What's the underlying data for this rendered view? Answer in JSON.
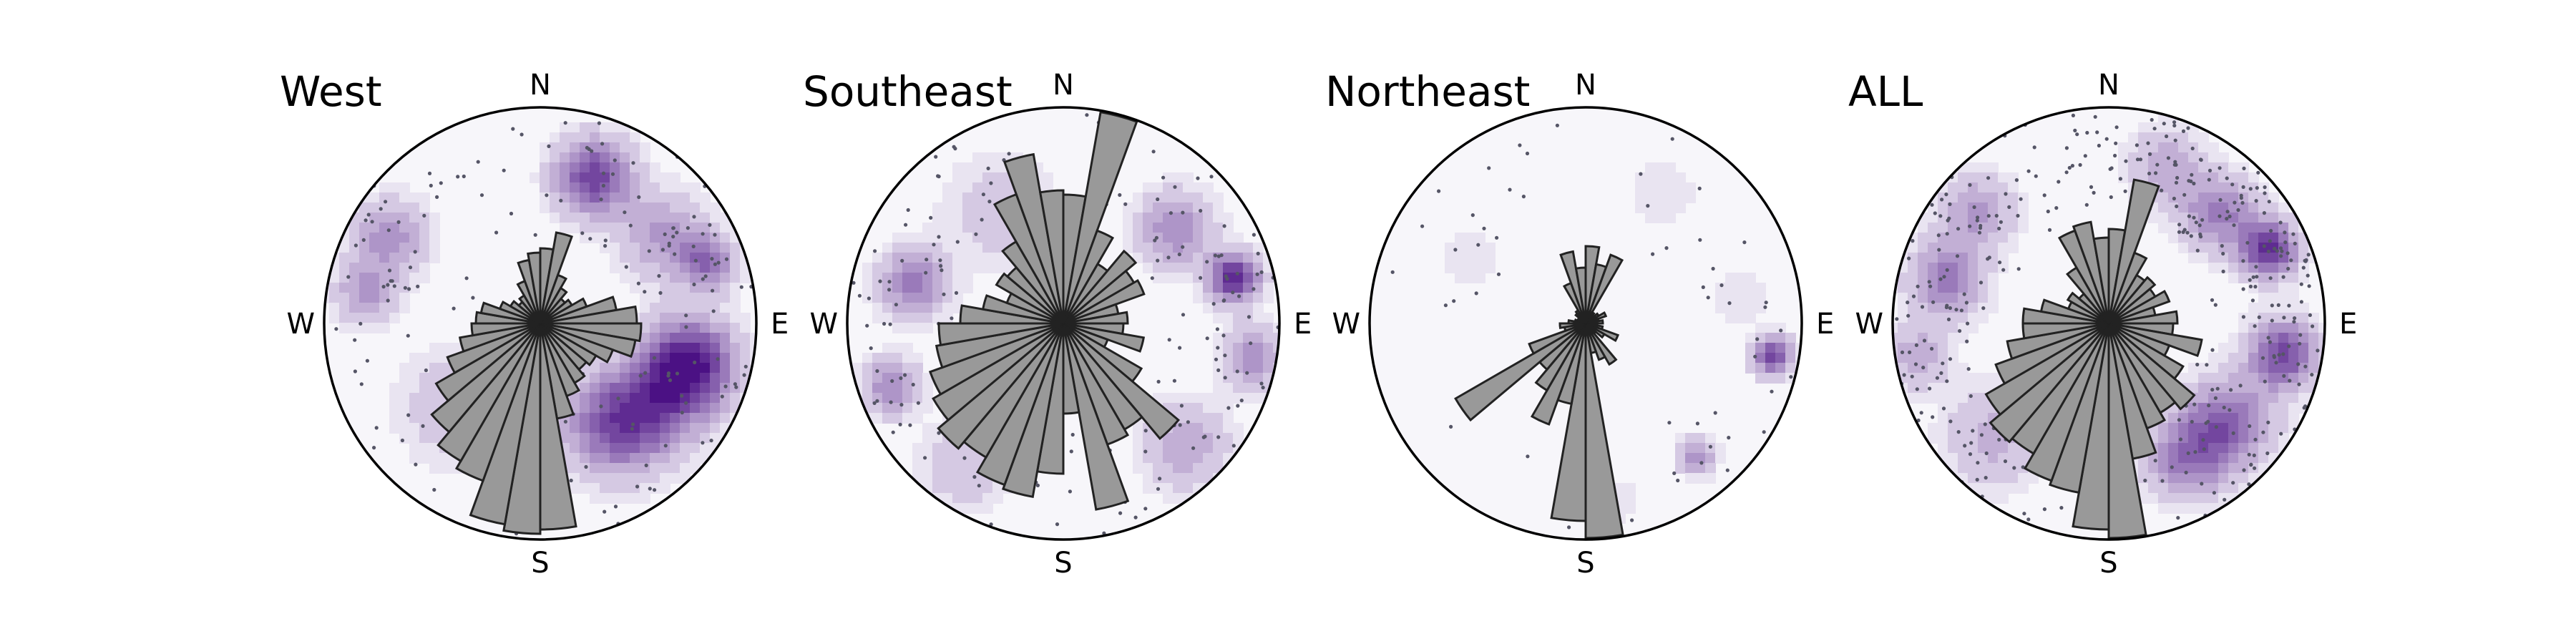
{
  "chart_data": [
    {
      "type": "rose",
      "title": "West",
      "directions": [
        "N",
        "E",
        "S",
        "W"
      ],
      "bin_width_deg": 10,
      "rose_bins": [
        {
          "azimuth": 5,
          "value": 0.35
        },
        {
          "azimuth": 15,
          "value": 0.43
        },
        {
          "azimuth": 25,
          "value": 0.24
        },
        {
          "azimuth": 35,
          "value": 0.19
        },
        {
          "azimuth": 45,
          "value": 0.15
        },
        {
          "azimuth": 55,
          "value": 0.17
        },
        {
          "azimuth": 65,
          "value": 0.23
        },
        {
          "azimuth": 75,
          "value": 0.36
        },
        {
          "azimuth": 85,
          "value": 0.45
        },
        {
          "azimuth": 95,
          "value": 0.47
        },
        {
          "azimuth": 105,
          "value": 0.45
        },
        {
          "azimuth": 115,
          "value": 0.36
        },
        {
          "azimuth": 125,
          "value": 0.3
        },
        {
          "azimuth": 135,
          "value": 0.28
        },
        {
          "azimuth": 145,
          "value": 0.32
        },
        {
          "azimuth": 155,
          "value": 0.36
        },
        {
          "azimuth": 165,
          "value": 0.45
        },
        {
          "azimuth": 175,
          "value": 0.96
        },
        {
          "azimuth": 185,
          "value": 0.98
        },
        {
          "azimuth": 195,
          "value": 0.95
        },
        {
          "azimuth": 205,
          "value": 0.78
        },
        {
          "azimuth": 215,
          "value": 0.74
        },
        {
          "azimuth": 225,
          "value": 0.66
        },
        {
          "azimuth": 235,
          "value": 0.56
        },
        {
          "azimuth": 245,
          "value": 0.46
        },
        {
          "azimuth": 255,
          "value": 0.38
        },
        {
          "azimuth": 265,
          "value": 0.32
        },
        {
          "azimuth": 275,
          "value": 0.3
        },
        {
          "azimuth": 285,
          "value": 0.28
        },
        {
          "azimuth": 295,
          "value": 0.2
        },
        {
          "azimuth": 305,
          "value": 0.16
        },
        {
          "azimuth": 315,
          "value": 0.13
        },
        {
          "azimuth": 325,
          "value": 0.15
        },
        {
          "azimuth": 335,
          "value": 0.21
        },
        {
          "azimuth": 345,
          "value": 0.3
        },
        {
          "azimuth": 355,
          "value": 0.33
        }
      ],
      "density_peaks": [
        {
          "azimuth": 20,
          "radius": 0.72,
          "strength": 0.85,
          "spread": 0.12
        },
        {
          "azimuth": 55,
          "radius": 0.7,
          "strength": 0.4,
          "spread": 0.14
        },
        {
          "azimuth": 70,
          "radius": 0.82,
          "strength": 0.55,
          "spread": 0.09
        },
        {
          "azimuth": 105,
          "radius": 0.72,
          "strength": 1.0,
          "spread": 0.14
        },
        {
          "azimuth": 125,
          "radius": 0.65,
          "strength": 0.55,
          "spread": 0.16
        },
        {
          "azimuth": 145,
          "radius": 0.58,
          "strength": 0.65,
          "spread": 0.16
        },
        {
          "azimuth": 300,
          "radius": 0.8,
          "strength": 0.45,
          "spread": 0.12
        },
        {
          "azimuth": 280,
          "radius": 0.82,
          "strength": 0.4,
          "spread": 0.1
        },
        {
          "azimuth": 225,
          "radius": 0.55,
          "strength": 0.25,
          "spread": 0.18
        }
      ],
      "pole_count": 170
    },
    {
      "type": "rose",
      "title": "Southeast",
      "directions": [
        "N",
        "E",
        "S",
        "W"
      ],
      "bin_width_deg": 10,
      "rose_bins": [
        {
          "azimuth": 5,
          "value": 0.6
        },
        {
          "azimuth": 15,
          "value": 1.0
        },
        {
          "azimuth": 25,
          "value": 0.46
        },
        {
          "azimuth": 35,
          "value": 0.32
        },
        {
          "azimuth": 45,
          "value": 0.44
        },
        {
          "azimuth": 55,
          "value": 0.38
        },
        {
          "azimuth": 65,
          "value": 0.4
        },
        {
          "azimuth": 75,
          "value": 0.26
        },
        {
          "azimuth": 85,
          "value": 0.3
        },
        {
          "azimuth": 95,
          "value": 0.28
        },
        {
          "azimuth": 105,
          "value": 0.38
        },
        {
          "azimuth": 115,
          "value": 0.22
        },
        {
          "azimuth": 125,
          "value": 0.42
        },
        {
          "azimuth": 135,
          "value": 0.7
        },
        {
          "azimuth": 145,
          "value": 0.57
        },
        {
          "azimuth": 155,
          "value": 0.6
        },
        {
          "azimuth": 165,
          "value": 0.88
        },
        {
          "azimuth": 175,
          "value": 0.42
        },
        {
          "azimuth": 185,
          "value": 0.7
        },
        {
          "azimuth": 195,
          "value": 0.82
        },
        {
          "azimuth": 205,
          "value": 0.8
        },
        {
          "azimuth": 215,
          "value": 0.72
        },
        {
          "azimuth": 225,
          "value": 0.76
        },
        {
          "azimuth": 235,
          "value": 0.7
        },
        {
          "azimuth": 245,
          "value": 0.66
        },
        {
          "azimuth": 255,
          "value": 0.6
        },
        {
          "azimuth": 265,
          "value": 0.58
        },
        {
          "azimuth": 275,
          "value": 0.48
        },
        {
          "azimuth": 285,
          "value": 0.38
        },
        {
          "azimuth": 295,
          "value": 0.28
        },
        {
          "azimuth": 305,
          "value": 0.36
        },
        {
          "azimuth": 315,
          "value": 0.34
        },
        {
          "azimuth": 325,
          "value": 0.44
        },
        {
          "azimuth": 335,
          "value": 0.64
        },
        {
          "azimuth": 345,
          "value": 0.8
        },
        {
          "azimuth": 355,
          "value": 0.62
        }
      ],
      "density_peaks": [
        {
          "azimuth": 75,
          "radius": 0.82,
          "strength": 0.95,
          "spread": 0.08
        },
        {
          "azimuth": 50,
          "radius": 0.68,
          "strength": 0.5,
          "spread": 0.12
        },
        {
          "azimuth": 100,
          "radius": 0.9,
          "strength": 0.45,
          "spread": 0.1
        },
        {
          "azimuth": 135,
          "radius": 0.8,
          "strength": 0.35,
          "spread": 0.14
        },
        {
          "azimuth": 285,
          "radius": 0.72,
          "strength": 0.55,
          "spread": 0.11
        },
        {
          "azimuth": 250,
          "radius": 0.85,
          "strength": 0.5,
          "spread": 0.09
        },
        {
          "azimuth": 330,
          "radius": 0.6,
          "strength": 0.2,
          "spread": 0.18
        },
        {
          "azimuth": 215,
          "radius": 0.8,
          "strength": 0.25,
          "spread": 0.14
        }
      ],
      "pole_count": 190
    },
    {
      "type": "rose",
      "title": "Northeast",
      "directions": [
        "N",
        "E",
        "S",
        "W"
      ],
      "bin_width_deg": 10,
      "rose_bins": [
        {
          "azimuth": 5,
          "value": 0.36
        },
        {
          "azimuth": 15,
          "value": 0.28
        },
        {
          "azimuth": 25,
          "value": 0.34
        },
        {
          "azimuth": 35,
          "value": 0.06
        },
        {
          "azimuth": 45,
          "value": 0.05
        },
        {
          "azimuth": 55,
          "value": 0.07
        },
        {
          "azimuth": 65,
          "value": 0.1
        },
        {
          "azimuth": 75,
          "value": 0.06
        },
        {
          "azimuth": 85,
          "value": 0.08
        },
        {
          "azimuth": 95,
          "value": 0.05
        },
        {
          "azimuth": 105,
          "value": 0.08
        },
        {
          "azimuth": 115,
          "value": 0.16
        },
        {
          "azimuth": 125,
          "value": 0.1
        },
        {
          "azimuth": 135,
          "value": 0.06
        },
        {
          "azimuth": 145,
          "value": 0.22
        },
        {
          "azimuth": 155,
          "value": 0.18
        },
        {
          "azimuth": 165,
          "value": 0.14
        },
        {
          "azimuth": 175,
          "value": 1.0
        },
        {
          "azimuth": 185,
          "value": 0.92
        },
        {
          "azimuth": 195,
          "value": 0.38
        },
        {
          "azimuth": 205,
          "value": 0.5
        },
        {
          "azimuth": 215,
          "value": 0.36
        },
        {
          "azimuth": 225,
          "value": 0.28
        },
        {
          "azimuth": 235,
          "value": 0.7
        },
        {
          "azimuth": 245,
          "value": 0.28
        },
        {
          "azimuth": 255,
          "value": 0.1
        },
        {
          "azimuth": 265,
          "value": 0.12
        },
        {
          "azimuth": 275,
          "value": 0.08
        },
        {
          "azimuth": 285,
          "value": 0.05
        },
        {
          "azimuth": 295,
          "value": 0.04
        },
        {
          "azimuth": 305,
          "value": 0.03
        },
        {
          "azimuth": 315,
          "value": 0.06
        },
        {
          "azimuth": 325,
          "value": 0.07
        },
        {
          "azimuth": 335,
          "value": 0.2
        },
        {
          "azimuth": 345,
          "value": 0.34
        },
        {
          "azimuth": 355,
          "value": 0.26
        }
      ],
      "density_peaks": [
        {
          "azimuth": 100,
          "radius": 0.88,
          "strength": 0.85,
          "spread": 0.06
        },
        {
          "azimuth": 140,
          "radius": 0.8,
          "strength": 0.45,
          "spread": 0.06
        },
        {
          "azimuth": 30,
          "radius": 0.7,
          "strength": 0.12,
          "spread": 0.12
        },
        {
          "azimuth": 80,
          "radius": 0.72,
          "strength": 0.1,
          "spread": 0.12
        },
        {
          "azimuth": 300,
          "radius": 0.62,
          "strength": 0.1,
          "spread": 0.12
        },
        {
          "azimuth": 170,
          "radius": 0.84,
          "strength": 0.12,
          "spread": 0.08
        }
      ],
      "pole_count": 60
    },
    {
      "type": "rose",
      "title": "ALL",
      "directions": [
        "N",
        "E",
        "S",
        "W"
      ],
      "bin_width_deg": 10,
      "rose_bins": [
        {
          "azimuth": 5,
          "value": 0.44
        },
        {
          "azimuth": 15,
          "value": 0.68
        },
        {
          "azimuth": 25,
          "value": 0.35
        },
        {
          "azimuth": 35,
          "value": 0.26
        },
        {
          "azimuth": 45,
          "value": 0.28
        },
        {
          "azimuth": 55,
          "value": 0.25
        },
        {
          "azimuth": 65,
          "value": 0.3
        },
        {
          "azimuth": 75,
          "value": 0.22
        },
        {
          "azimuth": 85,
          "value": 0.32
        },
        {
          "azimuth": 95,
          "value": 0.3
        },
        {
          "azimuth": 105,
          "value": 0.44
        },
        {
          "azimuth": 115,
          "value": 0.3
        },
        {
          "azimuth": 125,
          "value": 0.4
        },
        {
          "azimuth": 135,
          "value": 0.52
        },
        {
          "azimuth": 145,
          "value": 0.48
        },
        {
          "azimuth": 155,
          "value": 0.52
        },
        {
          "azimuth": 165,
          "value": 0.64
        },
        {
          "azimuth": 175,
          "value": 1.0
        },
        {
          "azimuth": 185,
          "value": 0.96
        },
        {
          "azimuth": 195,
          "value": 0.8
        },
        {
          "azimuth": 205,
          "value": 0.78
        },
        {
          "azimuth": 215,
          "value": 0.7
        },
        {
          "azimuth": 225,
          "value": 0.72
        },
        {
          "azimuth": 235,
          "value": 0.66
        },
        {
          "azimuth": 245,
          "value": 0.56
        },
        {
          "azimuth": 255,
          "value": 0.48
        },
        {
          "azimuth": 265,
          "value": 0.4
        },
        {
          "azimuth": 275,
          "value": 0.4
        },
        {
          "azimuth": 285,
          "value": 0.32
        },
        {
          "azimuth": 295,
          "value": 0.2
        },
        {
          "azimuth": 305,
          "value": 0.22
        },
        {
          "azimuth": 315,
          "value": 0.18
        },
        {
          "azimuth": 325,
          "value": 0.3
        },
        {
          "azimuth": 335,
          "value": 0.46
        },
        {
          "azimuth": 345,
          "value": 0.48
        },
        {
          "azimuth": 355,
          "value": 0.4
        }
      ],
      "density_peaks": [
        {
          "azimuth": 65,
          "radius": 0.82,
          "strength": 0.9,
          "spread": 0.09
        },
        {
          "azimuth": 45,
          "radius": 0.72,
          "strength": 0.55,
          "spread": 0.12
        },
        {
          "azimuth": 100,
          "radius": 0.82,
          "strength": 0.8,
          "spread": 0.11
        },
        {
          "azimuth": 130,
          "radius": 0.72,
          "strength": 0.65,
          "spread": 0.14
        },
        {
          "azimuth": 150,
          "radius": 0.72,
          "strength": 0.55,
          "spread": 0.13
        },
        {
          "azimuth": 285,
          "radius": 0.78,
          "strength": 0.55,
          "spread": 0.12
        },
        {
          "azimuth": 310,
          "radius": 0.8,
          "strength": 0.4,
          "spread": 0.12
        },
        {
          "azimuth": 260,
          "radius": 0.9,
          "strength": 0.35,
          "spread": 0.1
        },
        {
          "azimuth": 20,
          "radius": 0.78,
          "strength": 0.35,
          "spread": 0.12
        },
        {
          "azimuth": 225,
          "radius": 0.75,
          "strength": 0.3,
          "spread": 0.16
        }
      ],
      "pole_count": 420
    }
  ],
  "colors": {
    "density_low": "#f7f6fa",
    "density_high": "#4b1184",
    "rose_fill": "#999999",
    "rose_stroke": "#222222",
    "pole_dot": "#555566",
    "circle": "#000000"
  }
}
